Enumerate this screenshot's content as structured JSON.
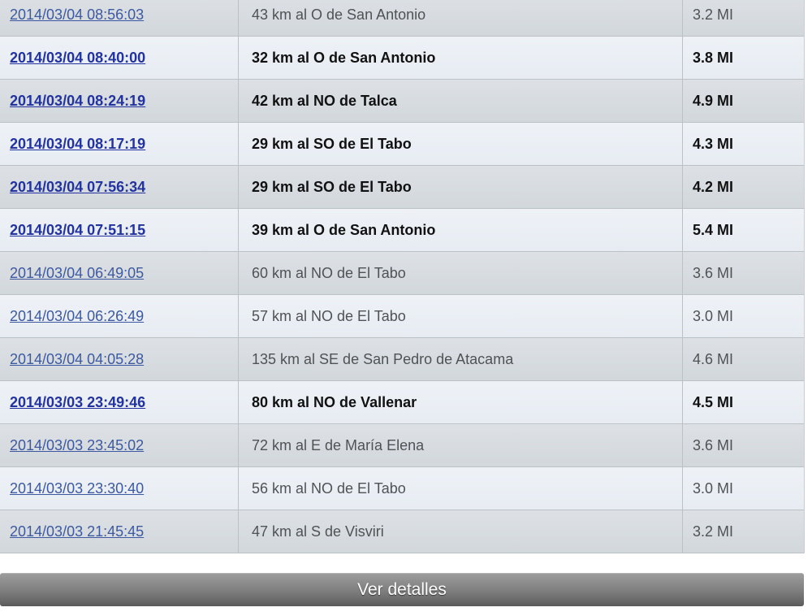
{
  "table": {
    "columns": [
      "datetime",
      "location",
      "magnitude"
    ],
    "rows": [
      {
        "datetime": "2014/03/04 08:56:03",
        "location": "43 km al O de San Antonio",
        "magnitude": "3.2 MI",
        "bold": false
      },
      {
        "datetime": "2014/03/04 08:40:00",
        "location": "32 km al O de San Antonio",
        "magnitude": "3.8 MI",
        "bold": true
      },
      {
        "datetime": "2014/03/04 08:24:19",
        "location": "42 km al NO de Talca",
        "magnitude": "4.9 MI",
        "bold": true
      },
      {
        "datetime": "2014/03/04 08:17:19",
        "location": "29 km al SO de El Tabo",
        "magnitude": "4.3 MI",
        "bold": true
      },
      {
        "datetime": "2014/03/04 07:56:34",
        "location": "29 km al SO de El Tabo",
        "magnitude": "4.2 MI",
        "bold": true
      },
      {
        "datetime": "2014/03/04 07:51:15",
        "location": "39 km al O de San Antonio",
        "magnitude": "5.4 MI",
        "bold": true
      },
      {
        "datetime": "2014/03/04 06:49:05",
        "location": "60 km al NO de El Tabo",
        "magnitude": "3.6 MI",
        "bold": false
      },
      {
        "datetime": "2014/03/04 06:26:49",
        "location": "57 km al NO de El Tabo",
        "magnitude": "3.0 MI",
        "bold": false
      },
      {
        "datetime": "2014/03/04 04:05:28",
        "location": "135 km al SE de San Pedro de Atacama",
        "magnitude": "4.6 MI",
        "bold": false
      },
      {
        "datetime": "2014/03/03 23:49:46",
        "location": "80 km al NO de Vallenar",
        "magnitude": "4.5 MI",
        "bold": true
      },
      {
        "datetime": "2014/03/03 23:45:02",
        "location": "72 km al E de María Elena",
        "magnitude": "3.6 MI",
        "bold": false
      },
      {
        "datetime": "2014/03/03 23:30:40",
        "location": "56 km al NO de El Tabo",
        "magnitude": "3.0 MI",
        "bold": false
      },
      {
        "datetime": "2014/03/03 21:45:45",
        "location": "47 km al S de Visviri",
        "magnitude": "3.2 MI",
        "bold": false
      }
    ]
  },
  "footer": {
    "button_label": "Ver detalles"
  },
  "colors": {
    "row_odd_bg": "#d7dce0",
    "row_even_bg": "#eaeff5",
    "divider": "#bcc1c6",
    "link_normal": "#3d5aa1",
    "link_bold": "#2233a0",
    "text_normal": "#4f5356",
    "text_bold": "#111111",
    "button_gradient_top": "#9c9c9c",
    "button_gradient_bottom": "#595959",
    "button_text": "#ffffff"
  }
}
